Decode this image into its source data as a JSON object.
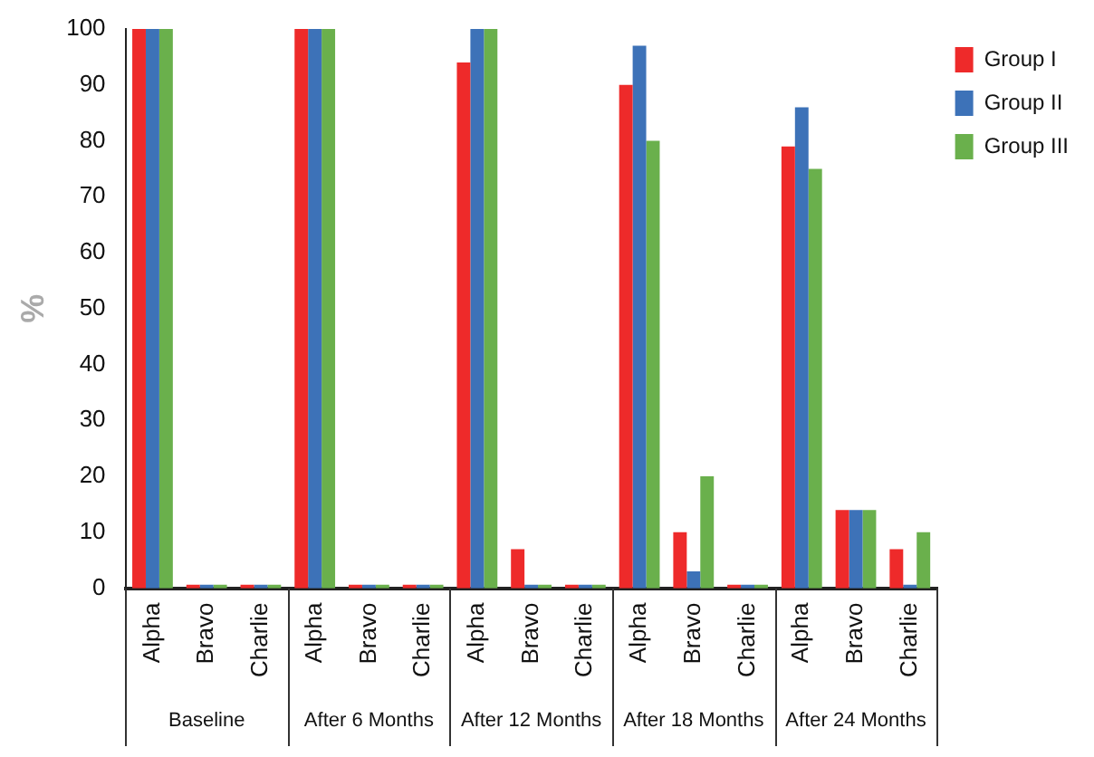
{
  "chart_data": {
    "type": "bar",
    "ylabel": "%",
    "categories": [
      "Alpha",
      "Bravo",
      "Charlie",
      "Alpha",
      "Bravo",
      "Charlie",
      "Alpha",
      "Bravo",
      "Charlie",
      "Alpha",
      "Bravo",
      "Charlie",
      "Alpha",
      "Bravo",
      "Charlie"
    ],
    "annotations": [
      "Baseline",
      "After 6 Months",
      "After 12 Months",
      "After 18 Months",
      "After 24 Months"
    ],
    "series": [
      {
        "name": "Group I",
        "color": "#ee2a2a",
        "values": [
          100,
          0,
          0,
          100,
          0,
          0,
          94,
          7,
          0,
          90,
          10,
          0,
          79,
          14,
          7
        ]
      },
      {
        "name": "Group II",
        "color": "#3d72b8",
        "values": [
          100,
          0,
          0,
          100,
          0,
          0,
          100,
          0,
          0,
          97,
          3,
          0,
          86,
          14,
          0
        ]
      },
      {
        "name": "Group III",
        "color": "#6ab04c",
        "values": [
          100,
          0,
          0,
          100,
          0,
          0,
          100,
          0,
          0,
          80,
          20,
          0,
          75,
          14,
          10
        ]
      }
    ],
    "ylim": [
      0,
      100
    ],
    "yticks": [
      0,
      10,
      20,
      30,
      40,
      50,
      60,
      70,
      80,
      90,
      100
    ],
    "grid": false,
    "legend": "top right"
  }
}
